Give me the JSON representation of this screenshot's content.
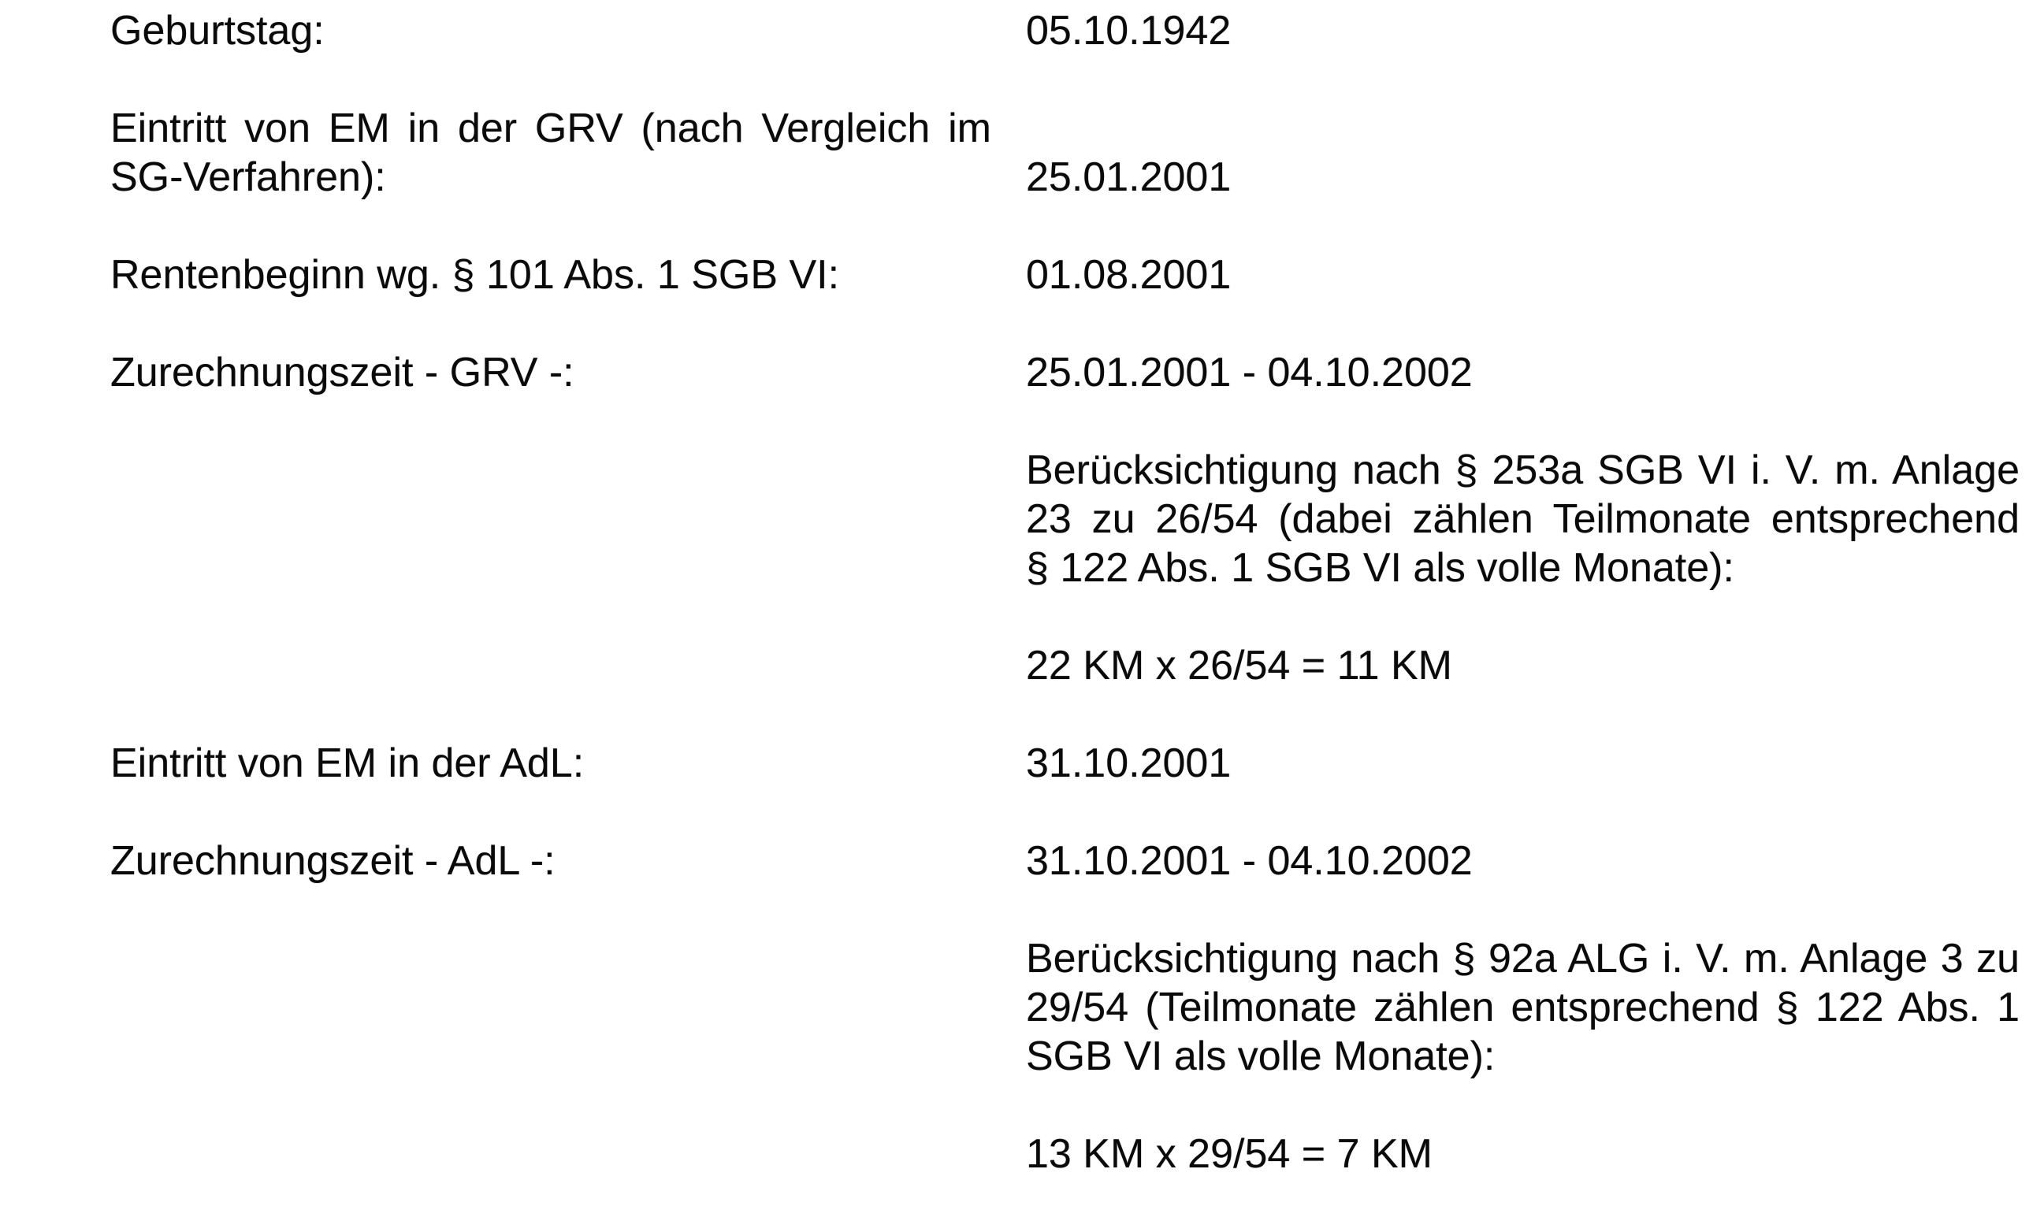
{
  "colors": {
    "background": "#ffffff",
    "text": "#0a0a0a"
  },
  "document": {
    "language": "de",
    "rows": [
      {
        "label": "Geburtstag:",
        "value": "05.10.1942"
      },
      {
        "label_lines": [
          "Eintritt von EM in der GRV (nach Vergleich im",
          "SG-Verfahren):"
        ],
        "value": "25.01.2001"
      },
      {
        "label": "Rentenbeginn wg. § 101 Abs. 1 SGB VI:",
        "value": "01.08.2001"
      },
      {
        "label": "Zurechnungszeit - GRV -:",
        "value": "25.01.2001 - 04.10.2002"
      },
      {
        "label": "",
        "value_lines": [
          "Berücksichtigung nach § 253a SGB VI i. V. m. Anlage",
          "23 zu 26/54 (dabei zählen Teilmonate entsprechend",
          "§ 122 Abs. 1 SGB VI als volle Monate):"
        ]
      },
      {
        "label": "",
        "value": "22 KM x 26/54 = 11 KM"
      },
      {
        "label": "Eintritt von EM in der AdL:",
        "value": "31.10.2001"
      },
      {
        "label": "Zurechnungszeit - AdL -:",
        "value": "31.10.2001 - 04.10.2002"
      },
      {
        "label": "",
        "value_lines": [
          "Berücksichtigung nach § 92a ALG i. V. m. Anlage 3 zu",
          "29/54 (Teilmonate zählen entsprechend § 122 Abs. 1",
          "SGB VI als volle Monate):"
        ]
      },
      {
        "label": "",
        "value": "13 KM x 29/54 = 7 KM"
      }
    ]
  }
}
